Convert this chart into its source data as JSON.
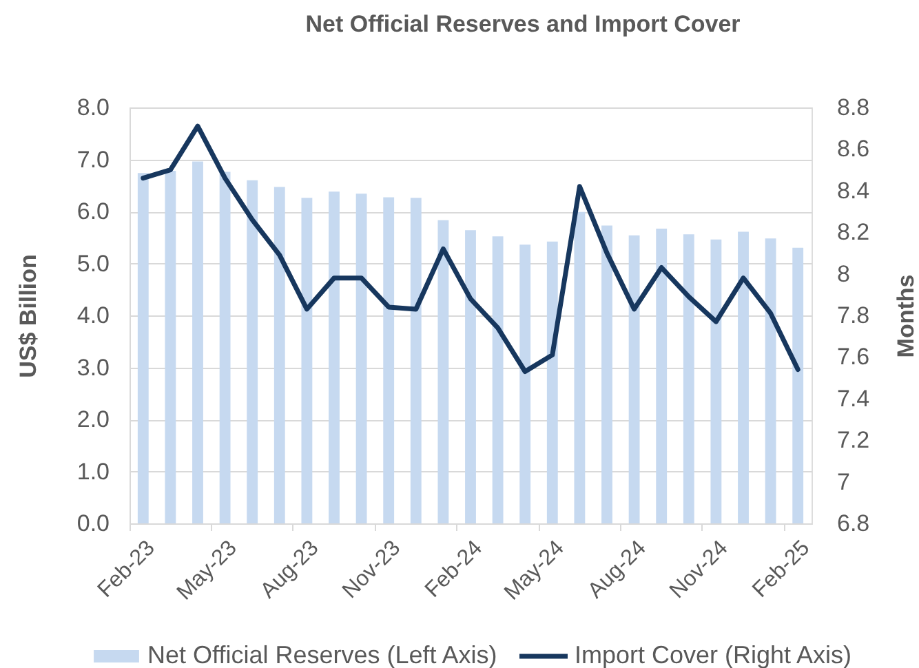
{
  "chart_data": {
    "type": "bar",
    "title": "Net Official Reserves and Import Cover",
    "ylabel": "US$ Billion",
    "y2label": "Months",
    "categories": [
      "Feb-23",
      null,
      null,
      "May-23",
      null,
      null,
      "Aug-23",
      null,
      null,
      "Nov-23",
      null,
      null,
      "Feb-24",
      null,
      null,
      "May-24",
      null,
      null,
      "Aug-24",
      null,
      null,
      "Nov-24",
      null,
      null,
      "Feb-25"
    ],
    "series": [
      {
        "name": "Net Official Reserves (Left Axis)",
        "color": "#c6d9f0",
        "values": [
          6.74,
          6.78,
          6.96,
          6.76,
          6.6,
          6.47,
          6.26,
          6.38,
          6.34,
          6.27,
          6.26,
          5.83,
          5.64,
          5.52,
          5.36,
          5.42,
          5.99,
          5.73,
          5.54,
          5.67,
          5.56,
          5.46,
          5.61,
          5.48,
          5.3
        ]
      },
      {
        "name": "Import Cover (Right Axis)",
        "type": "line",
        "axis": "y2",
        "color": "#17375e",
        "values": [
          8.46,
          8.5,
          8.71,
          8.46,
          8.26,
          8.09,
          7.83,
          7.98,
          7.98,
          7.84,
          7.83,
          8.12,
          7.88,
          7.74,
          7.53,
          7.61,
          8.42,
          8.1,
          7.83,
          8.03,
          7.89,
          7.77,
          7.98,
          7.81,
          7.54
        ]
      }
    ],
    "ylim": [
      0,
      8
    ],
    "yticks": [
      {
        "value": 0,
        "label": "0.0"
      },
      {
        "value": 1,
        "label": "1.0"
      },
      {
        "value": 2,
        "label": "2.0"
      },
      {
        "value": 3,
        "label": "3.0"
      },
      {
        "value": 4,
        "label": "4.0"
      },
      {
        "value": 5,
        "label": "5.0"
      },
      {
        "value": 6,
        "label": "6.0"
      },
      {
        "value": 7,
        "label": "7.0"
      },
      {
        "value": 8,
        "label": "8.0"
      }
    ],
    "y2lim": [
      6.8,
      8.8
    ],
    "y2ticks": [
      6.8,
      7,
      7.2,
      7.4,
      7.6,
      7.8,
      8,
      8.2,
      8.4,
      8.6,
      8.8
    ],
    "grid": "y",
    "legend": "bottom"
  }
}
